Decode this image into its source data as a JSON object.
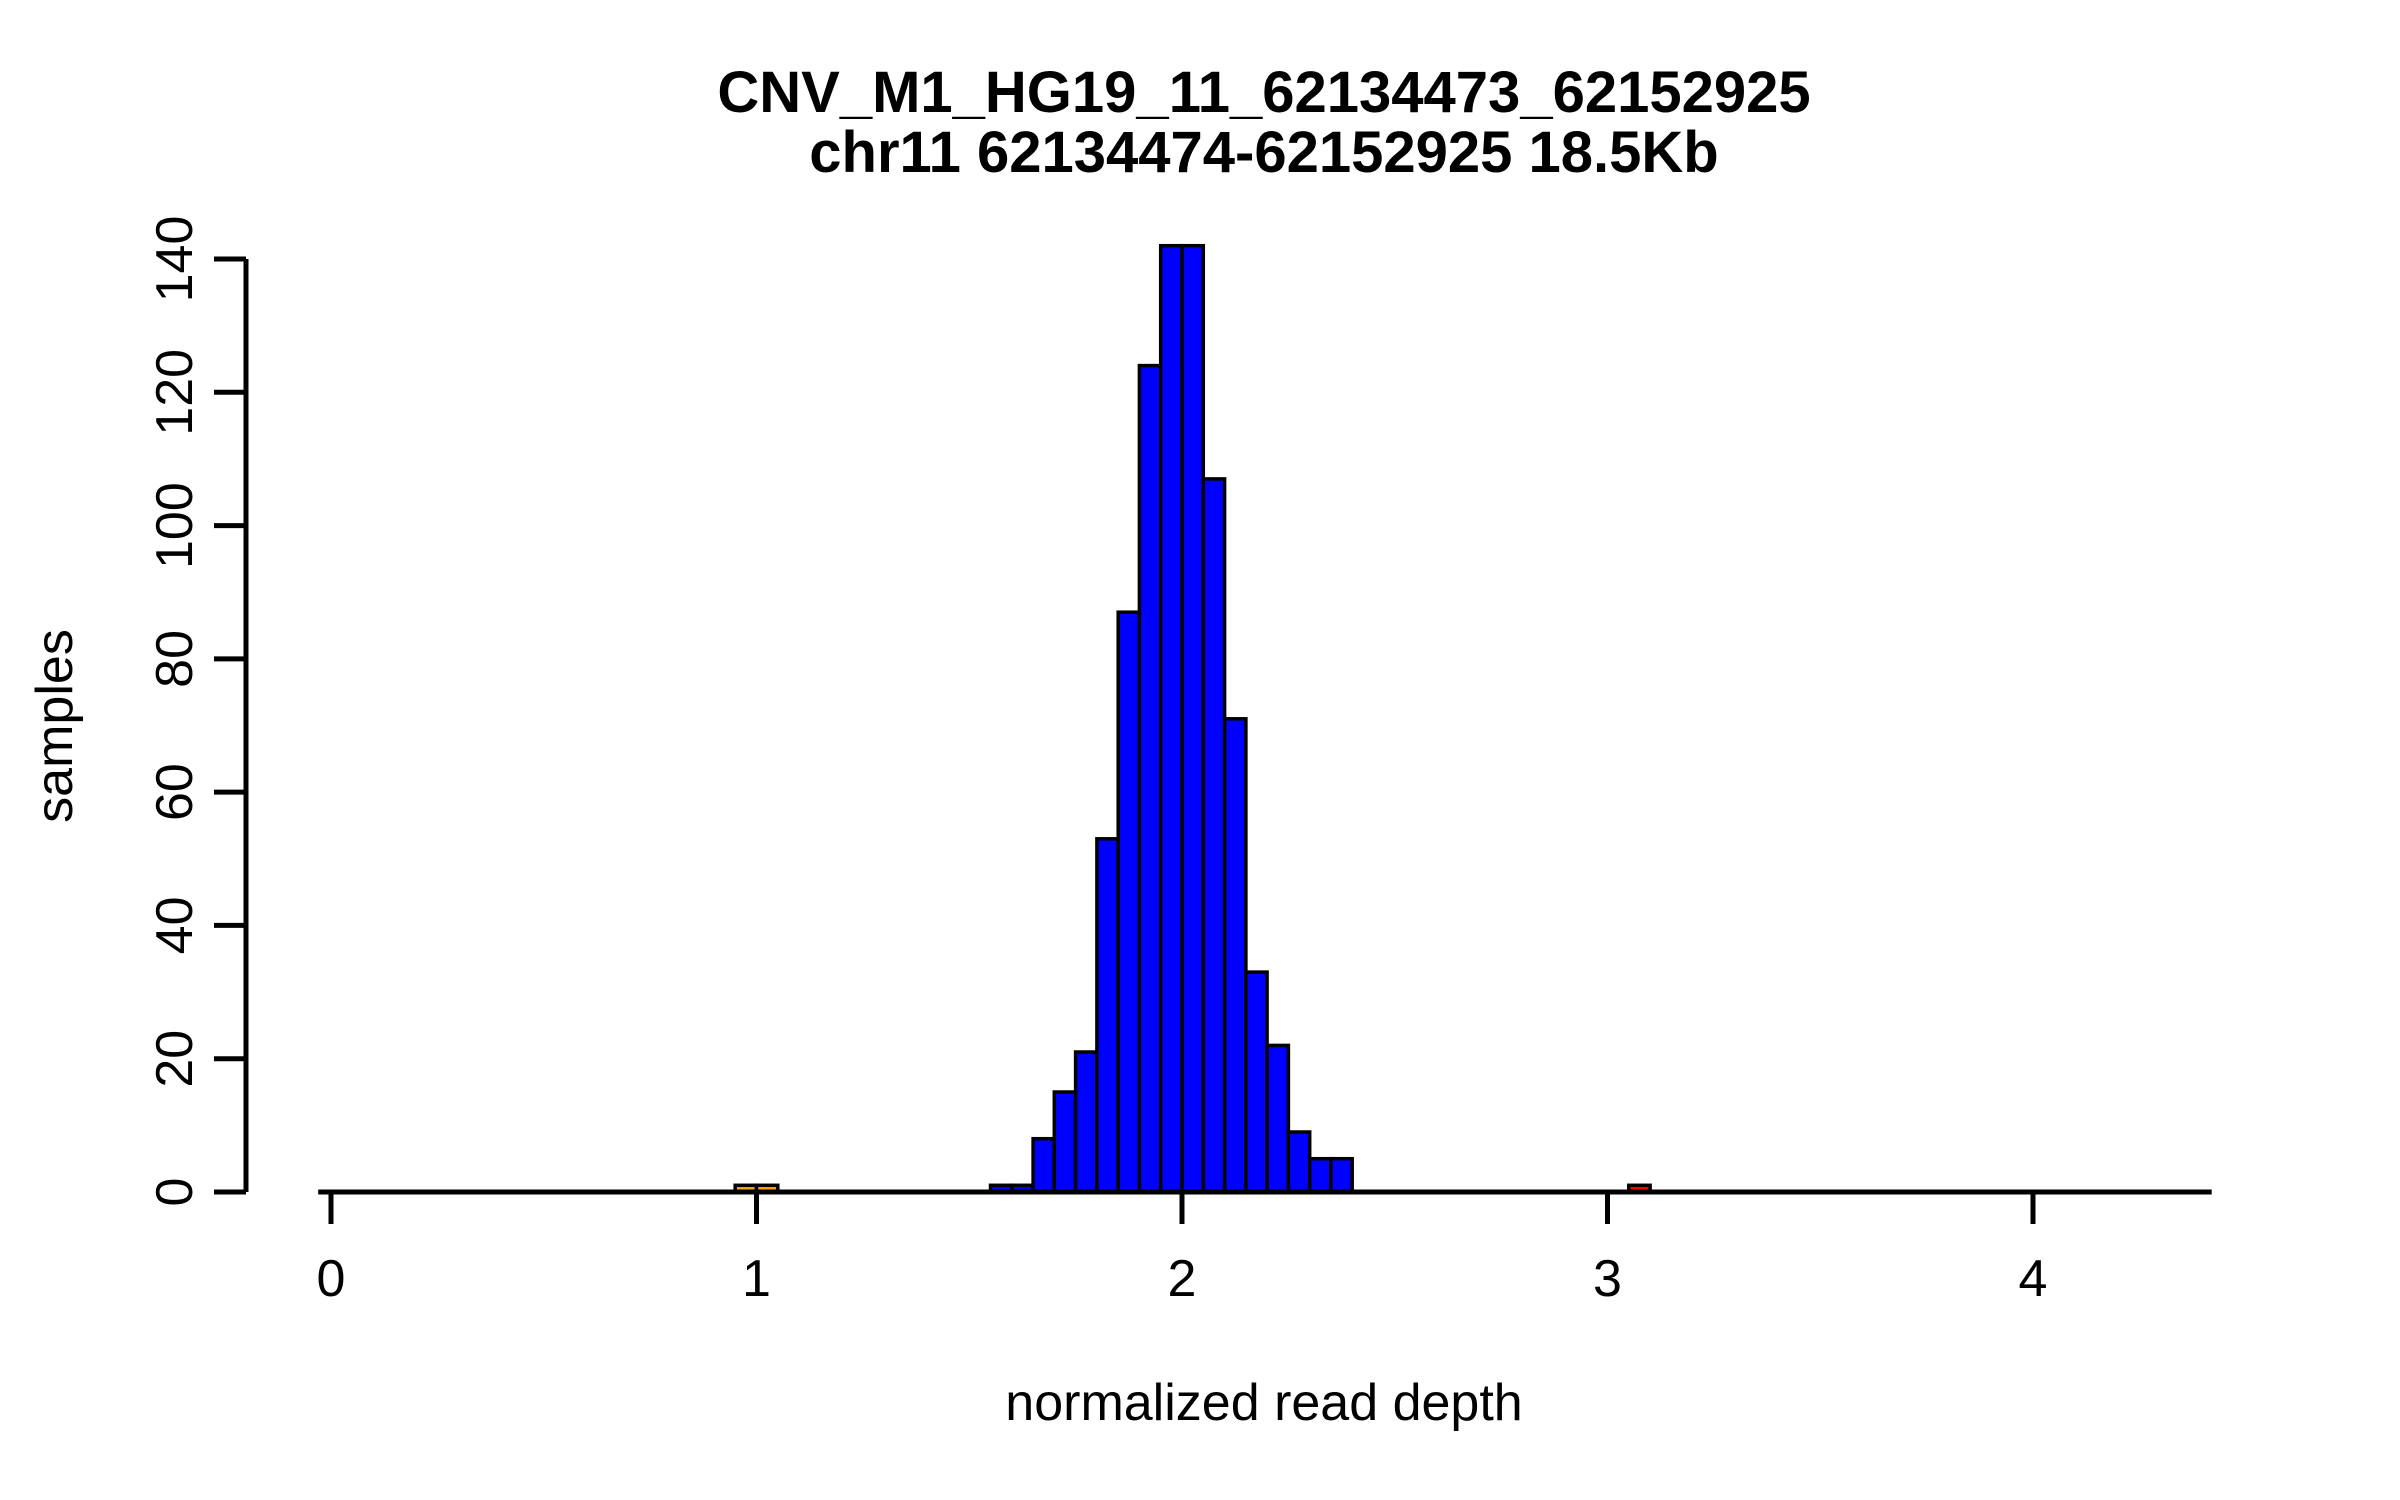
{
  "chart_data": {
    "type": "bar",
    "subtype": "histogram",
    "title": "CNV_M1_HG19_11_62134473_62152925",
    "subtitle": "chr11 62134474-62152925 18.5Kb",
    "xlabel": "normalized read depth",
    "ylabel": "samples",
    "x_ticks": [
      0,
      1,
      2,
      3,
      4
    ],
    "y_ticks": [
      0,
      20,
      40,
      60,
      80,
      100,
      120,
      140
    ],
    "xlim": [
      -0.03,
      4.42
    ],
    "ylim": [
      0,
      142
    ],
    "grid": false,
    "legend": false,
    "bin_width": 0.05,
    "bars": [
      {
        "x": 0.95,
        "count": 1,
        "color": "#FFA500"
      },
      {
        "x": 1.0,
        "count": 1,
        "color": "#FFA500"
      },
      {
        "x": 1.55,
        "count": 1,
        "color": "#0000FF"
      },
      {
        "x": 1.6,
        "count": 1,
        "color": "#0000FF"
      },
      {
        "x": 1.65,
        "count": 8,
        "color": "#0000FF"
      },
      {
        "x": 1.7,
        "count": 15,
        "color": "#0000FF"
      },
      {
        "x": 1.75,
        "count": 21,
        "color": "#0000FF"
      },
      {
        "x": 1.8,
        "count": 53,
        "color": "#0000FF"
      },
      {
        "x": 1.85,
        "count": 87,
        "color": "#0000FF"
      },
      {
        "x": 1.9,
        "count": 124,
        "color": "#0000FF"
      },
      {
        "x": 1.95,
        "count": 142,
        "color": "#0000FF"
      },
      {
        "x": 2.0,
        "count": 142,
        "color": "#0000FF"
      },
      {
        "x": 2.05,
        "count": 107,
        "color": "#0000FF"
      },
      {
        "x": 2.1,
        "count": 71,
        "color": "#0000FF"
      },
      {
        "x": 2.15,
        "count": 33,
        "color": "#0000FF"
      },
      {
        "x": 2.2,
        "count": 22,
        "color": "#0000FF"
      },
      {
        "x": 2.25,
        "count": 9,
        "color": "#0000FF"
      },
      {
        "x": 2.3,
        "count": 5,
        "color": "#0000FF"
      },
      {
        "x": 2.35,
        "count": 5,
        "color": "#0000FF"
      },
      {
        "x": 3.05,
        "count": 1,
        "color": "#FF0000"
      }
    ],
    "colors": {
      "main_bars": "#0000FF",
      "low_outlier_bars": "#FFA500",
      "high_outlier_bar": "#FF0000",
      "bar_border": "#000000",
      "axis": "#000000",
      "background": "#FFFFFF"
    }
  }
}
